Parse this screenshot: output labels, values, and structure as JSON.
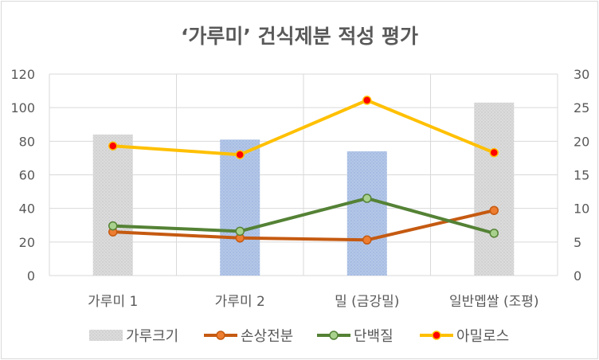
{
  "chart_data": {
    "type": "bar",
    "title": "‘가루미’ 건식제분 적성 평가",
    "categories": [
      "가루미 1",
      "가루미 2",
      "밀 (금강밀)",
      "일반멥쌀 (조평)"
    ],
    "y_left": {
      "ticks": [
        0,
        20,
        40,
        60,
        80,
        100,
        120
      ],
      "ylim": [
        0,
        120
      ]
    },
    "y_right": {
      "ticks": [
        0,
        5,
        10,
        15,
        20,
        25,
        30
      ],
      "ylim": [
        0,
        30
      ]
    },
    "grid": true,
    "legend_position": "bottom",
    "series": [
      {
        "name": "가루크기",
        "kind": "bar",
        "axis": "left",
        "values": [
          84,
          81,
          74,
          103
        ],
        "bar_colors": [
          "#d6d6d6",
          "#b4c7e7",
          "#b4c7e7",
          "#d6d6d6"
        ],
        "color": "#d6d6d6"
      },
      {
        "name": "손상전분",
        "kind": "line",
        "axis": "right",
        "values": [
          6.5,
          5.6,
          5.3,
          9.7
        ],
        "color": "#c55a11",
        "marker_fill": "#ed7d31",
        "marker_stroke": "#c55a11"
      },
      {
        "name": "단백질",
        "kind": "line",
        "axis": "right",
        "values": [
          7.4,
          6.6,
          11.5,
          6.3
        ],
        "color": "#548235",
        "marker_fill": "#a9d18e",
        "marker_stroke": "#548235"
      },
      {
        "name": "아밀로스",
        "kind": "line",
        "axis": "right",
        "values": [
          19.3,
          18.0,
          26.1,
          18.3
        ],
        "color": "#ffc000",
        "marker_fill": "#ff0000",
        "marker_stroke": "#ffc000"
      }
    ]
  }
}
